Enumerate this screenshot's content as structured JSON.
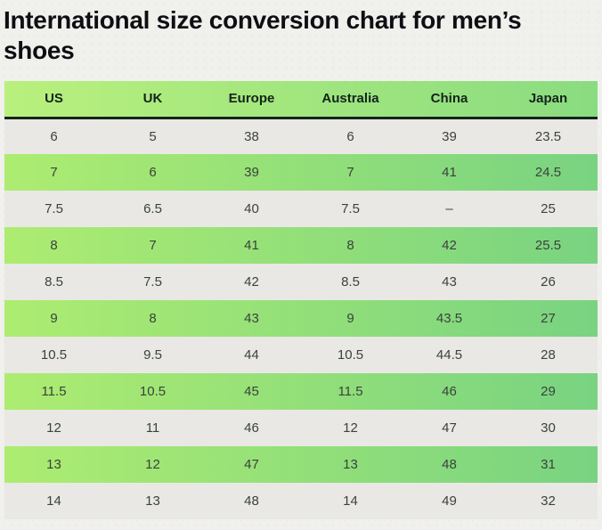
{
  "page": {
    "title": "International size conversion chart for men’s shoes"
  },
  "table": {
    "columns": [
      "US",
      "UK",
      "Europe",
      "Australia",
      "China",
      "Japan"
    ],
    "rows": [
      [
        "6",
        "5",
        "38",
        "6",
        "39",
        "23.5"
      ],
      [
        "7",
        "6",
        "39",
        "7",
        "41",
        "24.5"
      ],
      [
        "7.5",
        "6.5",
        "40",
        "7.5",
        "–",
        "25"
      ],
      [
        "8",
        "7",
        "41",
        "8",
        "42",
        "25.5"
      ],
      [
        "8.5",
        "7.5",
        "42",
        "8.5",
        "43",
        "26"
      ],
      [
        "9",
        "8",
        "43",
        "9",
        "43.5",
        "27"
      ],
      [
        "10.5",
        "9.5",
        "44",
        "10.5",
        "44.5",
        "28"
      ],
      [
        "11.5",
        "10.5",
        "45",
        "11.5",
        "46",
        "29"
      ],
      [
        "12",
        "11",
        "46",
        "12",
        "47",
        "30"
      ],
      [
        "13",
        "12",
        "47",
        "13",
        "48",
        "31"
      ],
      [
        "14",
        "13",
        "48",
        "14",
        "49",
        "32"
      ]
    ]
  },
  "theme": {
    "page_bg": "#f0f1ec",
    "title_color": "#0e0e13",
    "header_gradient_left": "#b9f07d",
    "header_gradient_right": "#8adc80",
    "header_text": "#14241b",
    "header_border": "#15241c",
    "row_green_gradient_left": "#adec71",
    "row_green_gradient_right": "#79d381",
    "row_gray": "#e9e8e5",
    "cell_text": "#3a423c"
  }
}
